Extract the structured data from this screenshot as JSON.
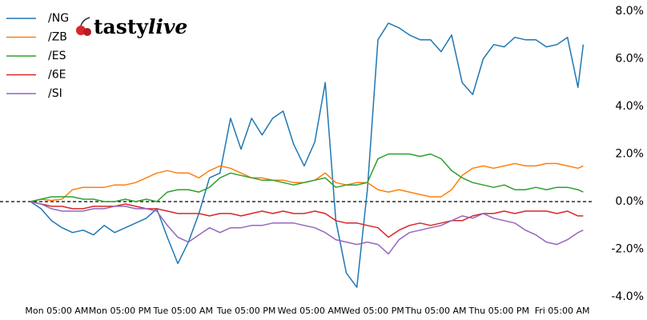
{
  "chart_data": {
    "type": "line",
    "logo": [
      "tasty",
      "live"
    ],
    "x": [
      0,
      2,
      4,
      6,
      8,
      10,
      12,
      14,
      16,
      18,
      20,
      22,
      24,
      26,
      28,
      30,
      32,
      34,
      36,
      38,
      40,
      42,
      44,
      46,
      48,
      50,
      52,
      54,
      56,
      58,
      60,
      62,
      64,
      66,
      68,
      70,
      72,
      74,
      76,
      78,
      80,
      82,
      84,
      86,
      88,
      90,
      92,
      94,
      96,
      98,
      100,
      102,
      104,
      105
    ],
    "series": [
      {
        "name": "/NG",
        "color": "#1f77b4",
        "values": [
          0,
          -0.3,
          -0.8,
          -1.1,
          -1.3,
          -1.2,
          -1.4,
          -1.0,
          -1.3,
          -1.1,
          -0.9,
          -0.7,
          -0.3,
          -1.5,
          -2.6,
          -1.7,
          -0.5,
          1.0,
          1.2,
          3.5,
          2.2,
          3.5,
          2.8,
          3.5,
          3.8,
          2.4,
          1.5,
          2.5,
          5.0,
          -0.8,
          -3.0,
          -3.6,
          0.5,
          6.8,
          7.5,
          7.3,
          7.0,
          6.8,
          6.8,
          6.3,
          7.0,
          5.0,
          4.5,
          6.0,
          6.6,
          6.5,
          6.9,
          6.8,
          6.8,
          6.5,
          6.6,
          6.9,
          4.8,
          6.6
        ]
      },
      {
        "name": "/ZB",
        "color": "#ff7f0e",
        "values": [
          0,
          0.1,
          0.05,
          0.1,
          0.5,
          0.6,
          0.6,
          0.6,
          0.7,
          0.7,
          0.8,
          1.0,
          1.2,
          1.3,
          1.2,
          1.2,
          1.0,
          1.3,
          1.5,
          1.4,
          1.2,
          1.0,
          1.0,
          0.9,
          0.9,
          0.8,
          0.8,
          0.9,
          1.2,
          0.8,
          0.7,
          0.8,
          0.8,
          0.5,
          0.4,
          0.5,
          0.4,
          0.3,
          0.2,
          0.2,
          0.5,
          1.1,
          1.4,
          1.5,
          1.4,
          1.5,
          1.6,
          1.5,
          1.5,
          1.6,
          1.6,
          1.5,
          1.4,
          1.5
        ]
      },
      {
        "name": "/ES",
        "color": "#2ca02c",
        "values": [
          0,
          0.1,
          0.2,
          0.2,
          0.2,
          0.1,
          0.1,
          0.0,
          0.0,
          0.1,
          0.0,
          0.1,
          0.0,
          0.4,
          0.5,
          0.5,
          0.4,
          0.6,
          1.0,
          1.2,
          1.1,
          1.0,
          0.9,
          0.9,
          0.8,
          0.7,
          0.8,
          0.9,
          1.0,
          0.6,
          0.7,
          0.7,
          0.8,
          1.8,
          2.0,
          2.0,
          2.0,
          1.9,
          2.0,
          1.8,
          1.3,
          1.0,
          0.8,
          0.7,
          0.6,
          0.7,
          0.5,
          0.5,
          0.6,
          0.5,
          0.6,
          0.6,
          0.5,
          0.4
        ]
      },
      {
        "name": "/6E",
        "color": "#d62728",
        "values": [
          0,
          -0.1,
          -0.2,
          -0.2,
          -0.3,
          -0.3,
          -0.2,
          -0.2,
          -0.2,
          -0.1,
          -0.2,
          -0.3,
          -0.3,
          -0.4,
          -0.5,
          -0.5,
          -0.5,
          -0.6,
          -0.5,
          -0.5,
          -0.6,
          -0.5,
          -0.4,
          -0.5,
          -0.4,
          -0.5,
          -0.5,
          -0.4,
          -0.5,
          -0.8,
          -0.9,
          -0.9,
          -1.0,
          -1.1,
          -1.5,
          -1.2,
          -1.0,
          -0.9,
          -1.0,
          -0.9,
          -0.8,
          -0.8,
          -0.6,
          -0.5,
          -0.5,
          -0.4,
          -0.5,
          -0.4,
          -0.4,
          -0.4,
          -0.5,
          -0.4,
          -0.6,
          -0.6
        ]
      },
      {
        "name": "/SI",
        "color": "#9467bd",
        "values": [
          0,
          -0.1,
          -0.3,
          -0.4,
          -0.4,
          -0.4,
          -0.3,
          -0.3,
          -0.2,
          -0.2,
          -0.3,
          -0.3,
          -0.4,
          -1.0,
          -1.5,
          -1.7,
          -1.4,
          -1.1,
          -1.3,
          -1.1,
          -1.1,
          -1.0,
          -1.0,
          -0.9,
          -0.9,
          -0.9,
          -1.0,
          -1.1,
          -1.3,
          -1.6,
          -1.7,
          -1.8,
          -1.7,
          -1.8,
          -2.2,
          -1.6,
          -1.3,
          -1.2,
          -1.1,
          -1.0,
          -0.8,
          -0.6,
          -0.7,
          -0.5,
          -0.7,
          -0.8,
          -0.9,
          -1.2,
          -1.4,
          -1.7,
          -1.8,
          -1.6,
          -1.3,
          -1.2
        ]
      }
    ],
    "xlim": [
      0,
      106
    ],
    "xticks": [
      {
        "value": 5,
        "label": "Mon 05:00 AM"
      },
      {
        "value": 17,
        "label": "Mon 05:00 PM"
      },
      {
        "value": 29,
        "label": "Tue 05:00 AM"
      },
      {
        "value": 41,
        "label": "Tue 05:00 PM"
      },
      {
        "value": 53,
        "label": "Wed 05:00 AM"
      },
      {
        "value": 65,
        "label": "Wed 05:00 PM"
      },
      {
        "value": 77,
        "label": "Thu 05:00 AM"
      },
      {
        "value": 89,
        "label": "Thu 05:00 PM"
      },
      {
        "value": 101,
        "label": "Fri 05:00 AM"
      }
    ],
    "ylim": [
      -4,
      8
    ],
    "yticks": [
      {
        "value": -4,
        "label": "-4.0%"
      },
      {
        "value": -2,
        "label": "-2.0%"
      },
      {
        "value": 0,
        "label": "0.0%"
      },
      {
        "value": 2,
        "label": "2.0%"
      },
      {
        "value": 4,
        "label": "4.0%"
      },
      {
        "value": 6,
        "label": "6.0%"
      },
      {
        "value": 8,
        "label": "8.0%"
      }
    ],
    "reference_line": 0,
    "legend": "upper-left"
  }
}
